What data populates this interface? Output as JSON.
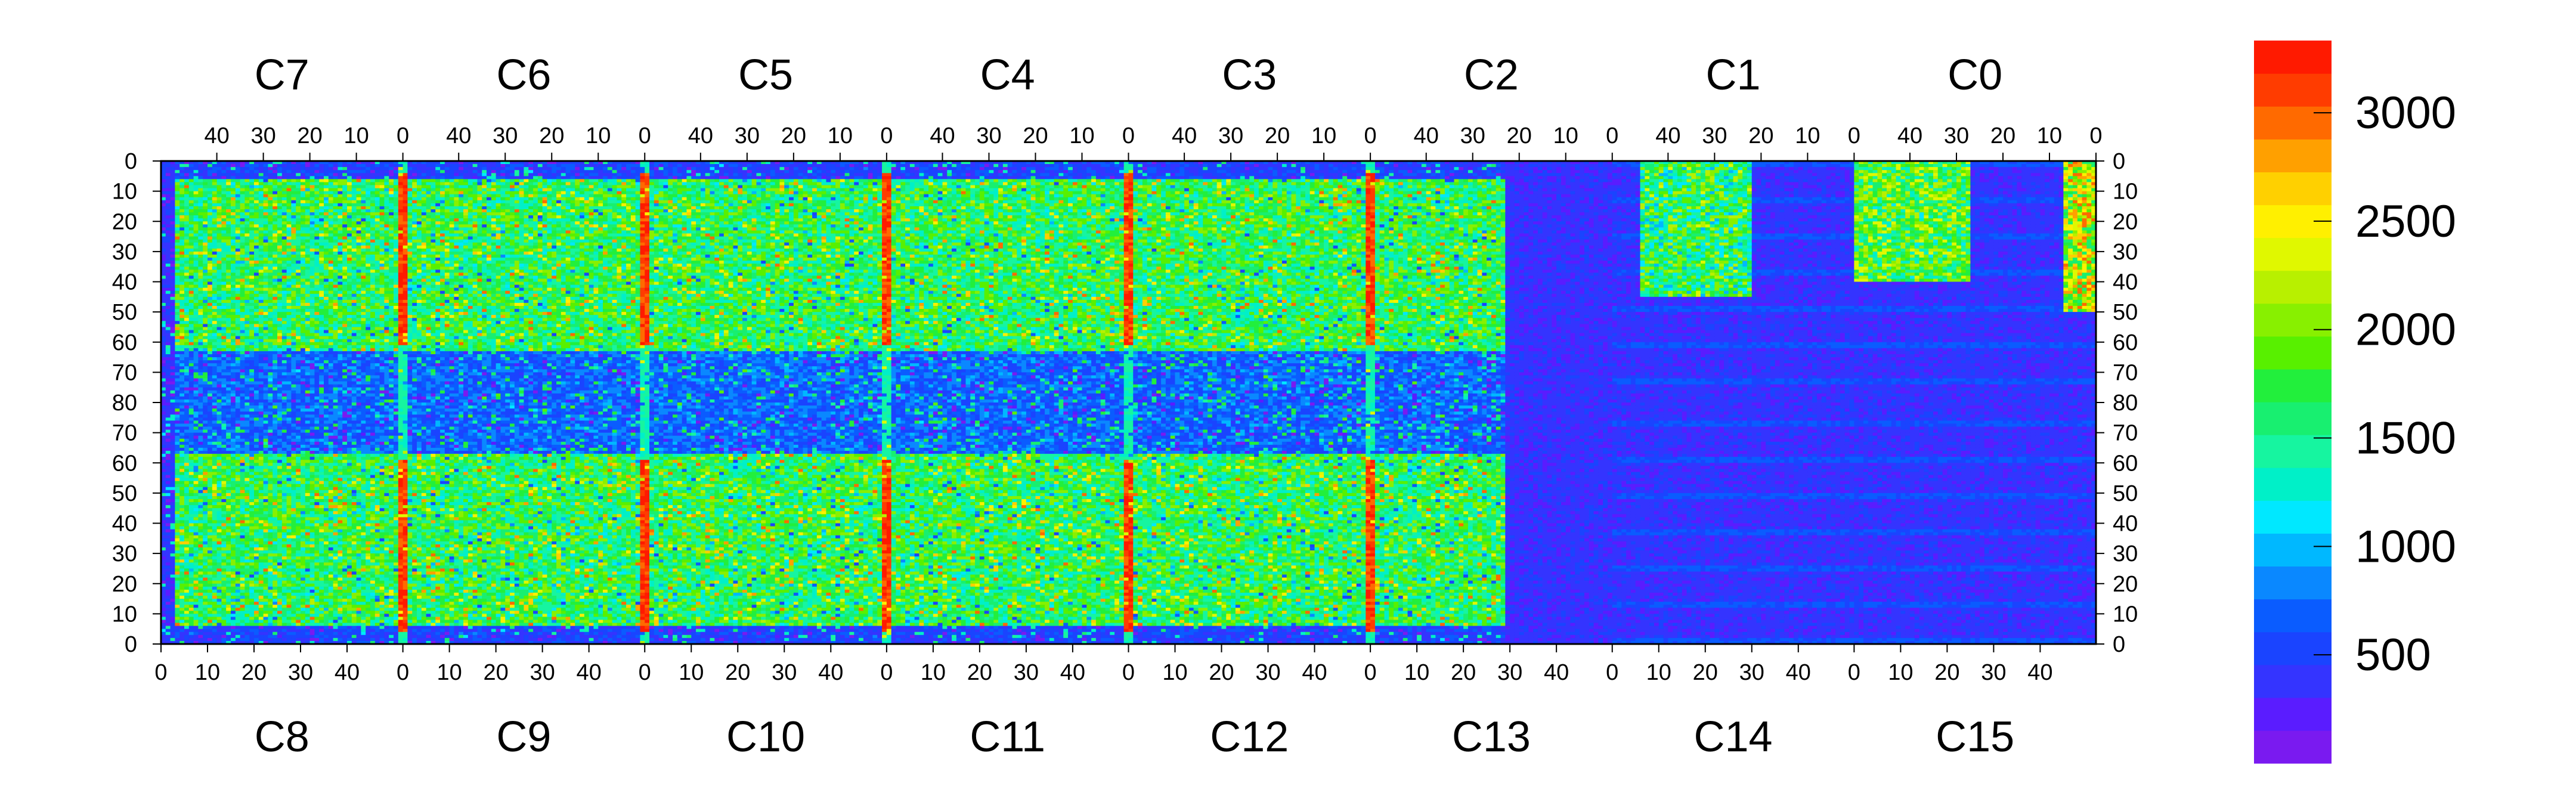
{
  "chart_data": {
    "type": "heatmap",
    "title": "",
    "colorbar": {
      "min": 0,
      "max": 3333,
      "tick_values": [
        500,
        1000,
        1500,
        2000,
        2500,
        3000
      ],
      "tick_labels": [
        "500",
        "1000",
        "1500",
        "2000",
        "2500",
        "3000"
      ],
      "palette": [
        "#7a1af0",
        "#5a1cff",
        "#3434ff",
        "#1a44ff",
        "#0a5cff",
        "#0a88ff",
        "#00b8ff",
        "#00e8ff",
        "#00f0c8",
        "#16f5a0",
        "#18ef70",
        "#22ef3c",
        "#58f000",
        "#88f000",
        "#b8f000",
        "#e0f800",
        "#fff000",
        "#ffd000",
        "#ffa000",
        "#ff6a00",
        "#ff3c00",
        "#ff1a00"
      ]
    },
    "top_chips": [
      "C7",
      "C6",
      "C5",
      "C4",
      "C3",
      "C2",
      "C1",
      "C0"
    ],
    "bottom_chips": [
      "C8",
      "C9",
      "C10",
      "C11",
      "C12",
      "C13",
      "C14",
      "C15"
    ],
    "top_column_ticks": [
      "40",
      "30",
      "20",
      "10",
      "0"
    ],
    "bottom_column_ticks": [
      "0",
      "10",
      "20",
      "30",
      "40"
    ],
    "row_ticks": [
      "0",
      "10",
      "20",
      "30",
      "40",
      "50",
      "60",
      "70",
      "80",
      "70",
      "60",
      "50",
      "40",
      "30",
      "20",
      "10",
      "0"
    ],
    "columns_per_chip": 52,
    "rows_per_half": 80,
    "dead_regions": [
      {
        "chip": "C13",
        "note": "mostly low occupancy, isolated empty pixels"
      },
      {
        "chip": "C14",
        "note": "low occupancy with horizontal streaks"
      },
      {
        "chip": "C15",
        "note": "low occupancy with horizontal streaks"
      }
    ]
  }
}
